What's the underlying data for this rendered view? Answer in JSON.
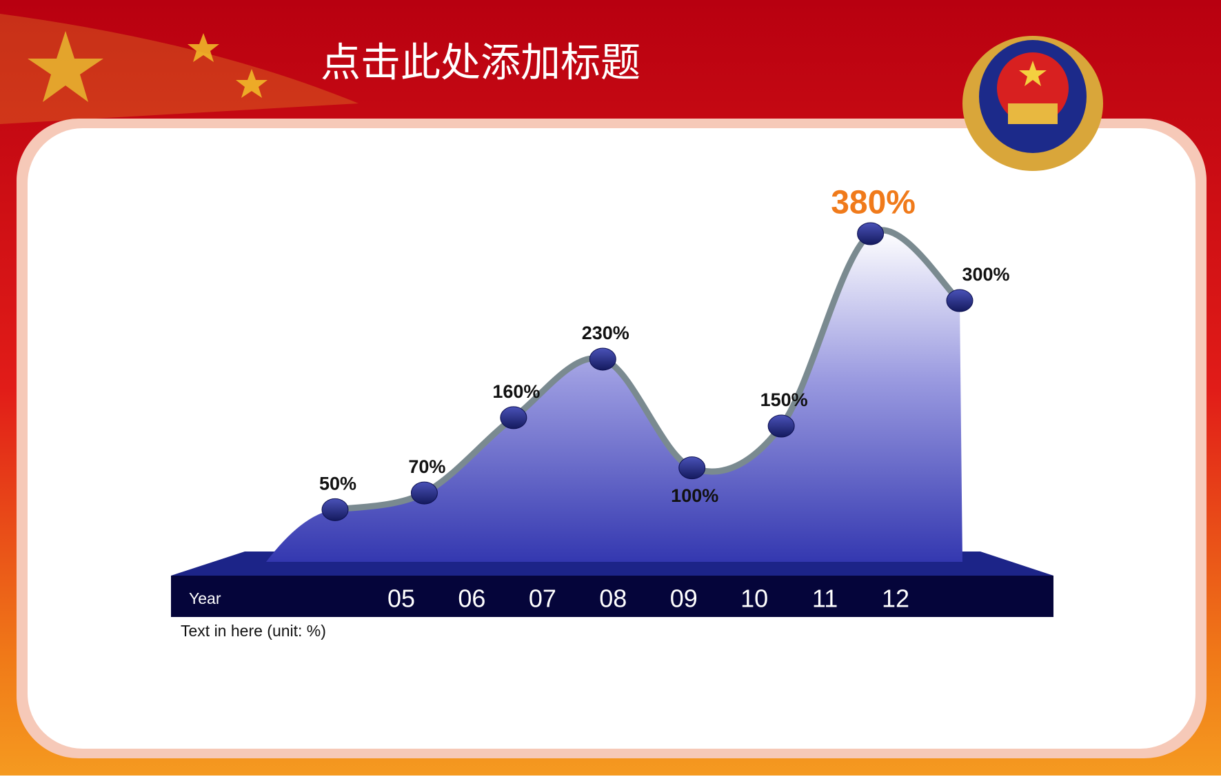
{
  "title": "点击此处添加标题",
  "chart_data": {
    "type": "area",
    "categories": [
      "05",
      "06",
      "07",
      "08",
      "09",
      "10",
      "11",
      "12"
    ],
    "values": [
      50,
      70,
      160,
      230,
      100,
      150,
      380,
      300
    ],
    "value_labels": [
      "50%",
      "70%",
      "160%",
      "230%",
      "100%",
      "150%",
      "380%",
      "300%"
    ],
    "color": "#3a3fb0",
    "marker_color": "#22287a",
    "highlight_color": "#f07a1a",
    "x_label": "Year",
    "note": "Text in here  (unit: %)"
  }
}
